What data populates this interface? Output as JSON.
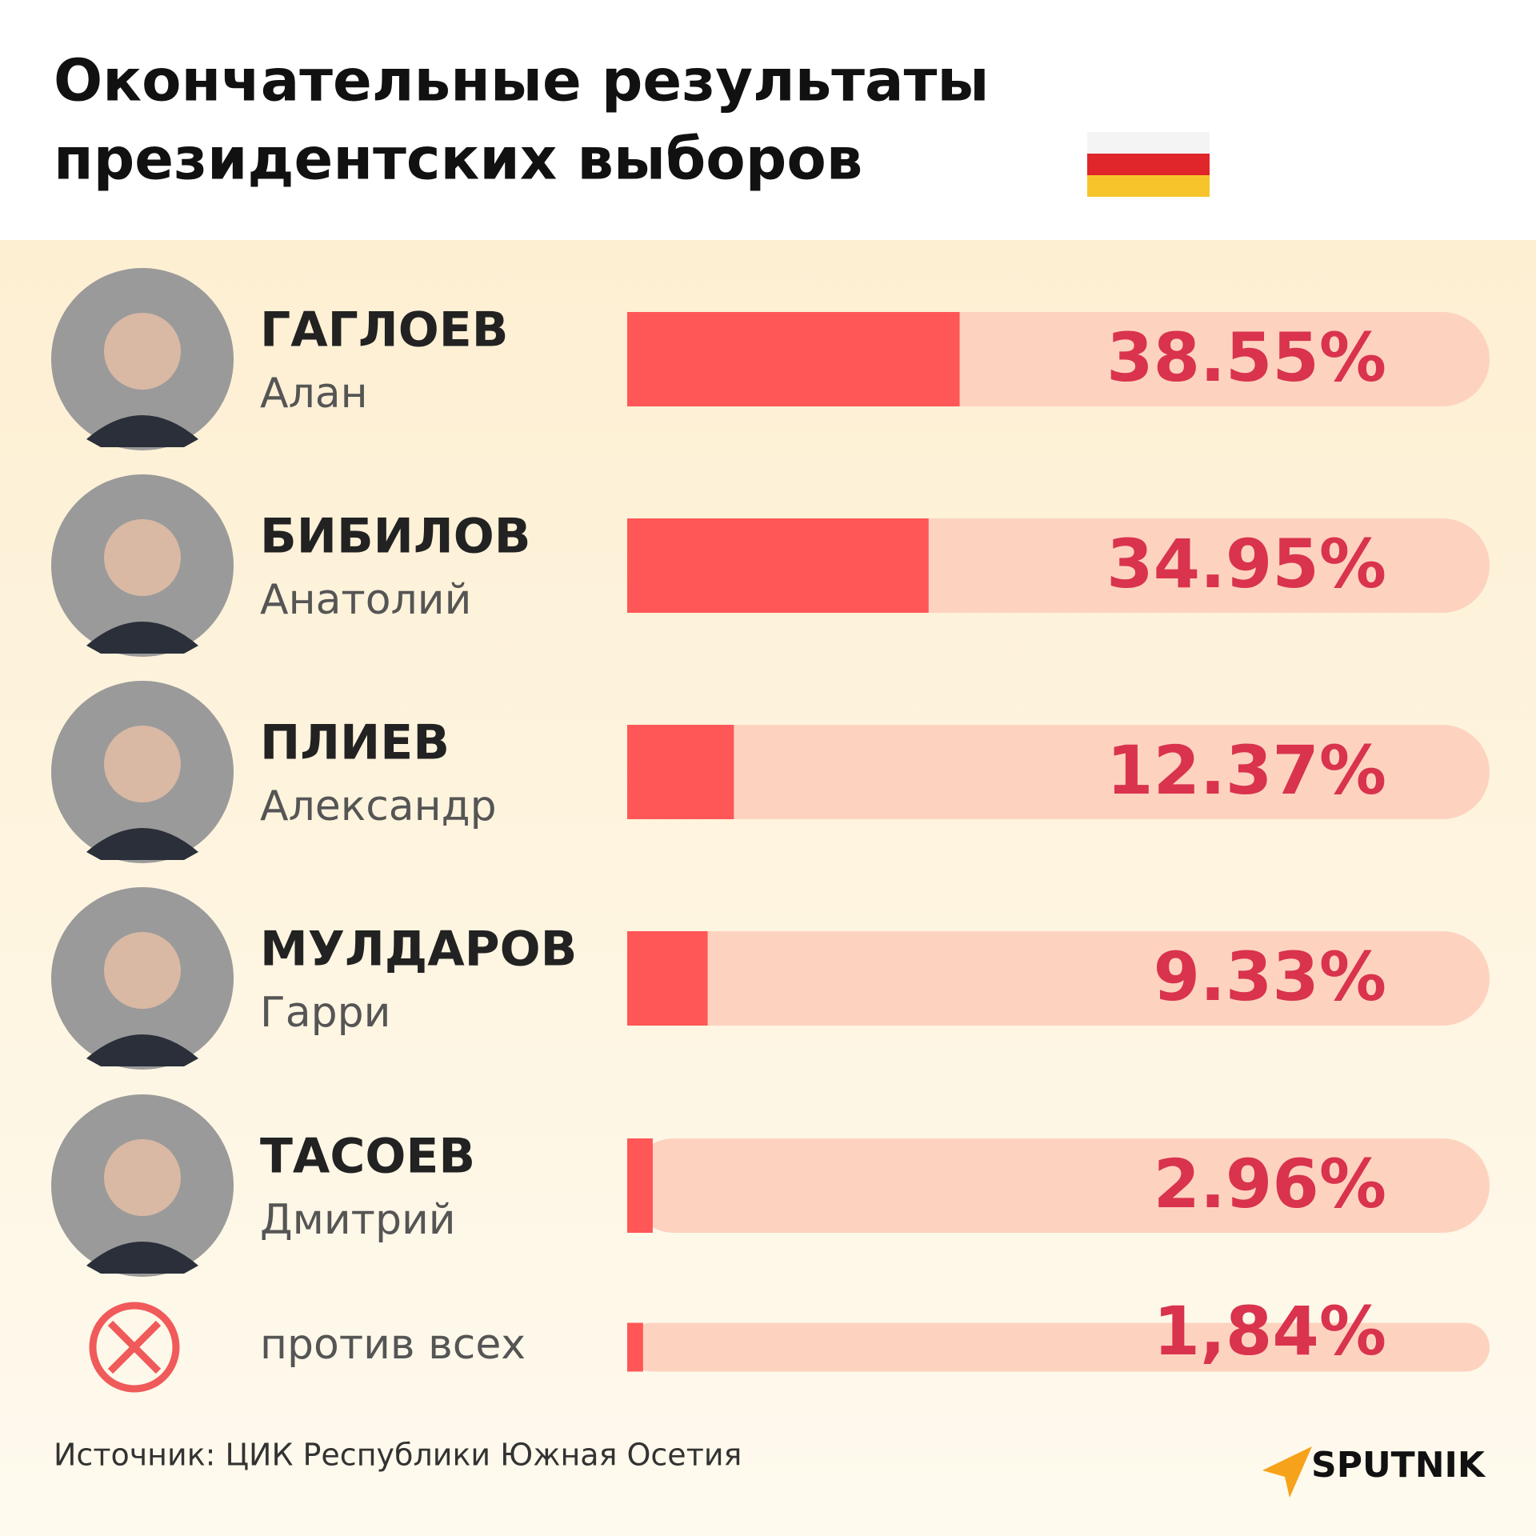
{
  "chart_data": {
    "type": "bar",
    "title": [
      "Окончательные результаты",
      "президентских выборов"
    ],
    "categories": [
      "ГАГЛОЕВ",
      "БИБИЛОВ",
      "ПЛИЕВ",
      "МУЛДАРОВ",
      "ТАСОЕВ",
      "против всех"
    ],
    "first_names": [
      "Алан",
      "Анатолий",
      "Александр",
      "Гарри",
      "Дмитрий",
      null
    ],
    "values": [
      38.55,
      34.95,
      12.37,
      9.33,
      2.96,
      1.84
    ],
    "value_labels": [
      "38.55%",
      "34.95%",
      "12.37%",
      "9.33%",
      "2.96%",
      "1,84%"
    ],
    "xlim": [
      0,
      100
    ],
    "color": "#ff5757",
    "track_color": "#fdd3c0",
    "label_color": "#d9334e",
    "source": "Источник: ЦИК Республики Южная Осетия",
    "logo": "SPUTNIK"
  }
}
